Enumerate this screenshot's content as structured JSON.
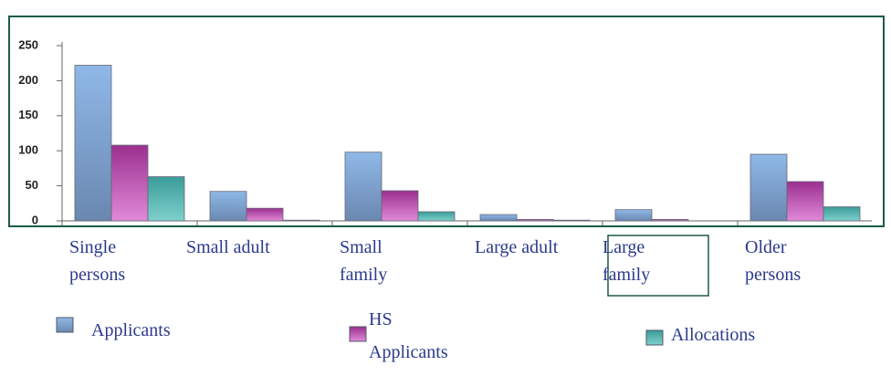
{
  "chart_data": {
    "type": "bar",
    "categories": [
      "Single persons",
      "Small adult",
      "Small family",
      "Large adult",
      "Large family",
      "Older persons"
    ],
    "series": [
      {
        "name": "Applicants",
        "color": "#8fb8e8",
        "values": [
          222,
          42,
          98,
          9,
          16,
          95
        ]
      },
      {
        "name": "HS Applicants",
        "color": "#9b2f8f",
        "values": [
          108,
          18,
          43,
          2,
          2,
          56
        ]
      },
      {
        "name": "Allocations",
        "color": "#3a9c98",
        "values": [
          63,
          1,
          13,
          1,
          0,
          20
        ]
      }
    ],
    "ylim": [
      0,
      250
    ],
    "yticks": [
      0,
      50,
      100,
      150,
      200,
      250
    ],
    "grid": false
  }
}
